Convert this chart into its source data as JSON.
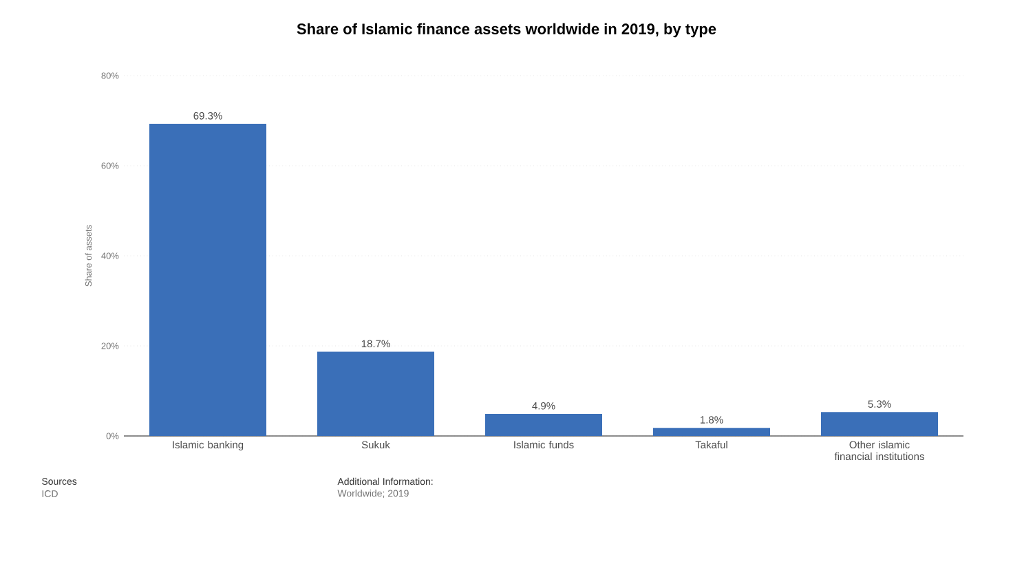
{
  "chart_data": {
    "type": "bar",
    "title": "Share of Islamic finance assets worldwide in 2019, by type",
    "ylabel": "Share of assets",
    "categories": [
      "Islamic banking",
      "Sukuk",
      "Islamic funds",
      "Takaful",
      "Other islamic financial institutions"
    ],
    "values": [
      69.3,
      18.7,
      4.9,
      1.8,
      5.3
    ],
    "value_labels": [
      "69.3%",
      "18.7%",
      "4.9%",
      "1.8%",
      "5.3%"
    ],
    "color": "#3a6fb8",
    "ylim": [
      0,
      80
    ],
    "yticks": [
      {
        "value": 0,
        "label": "0%"
      },
      {
        "value": 20,
        "label": "20%"
      },
      {
        "value": 40,
        "label": "40%"
      },
      {
        "value": 60,
        "label": "60%"
      },
      {
        "value": 80,
        "label": "80%"
      }
    ],
    "grid": "y",
    "annotations": [
      "Sources",
      "ICD",
      "Additional Information:",
      "Worldwide; 2019"
    ]
  }
}
